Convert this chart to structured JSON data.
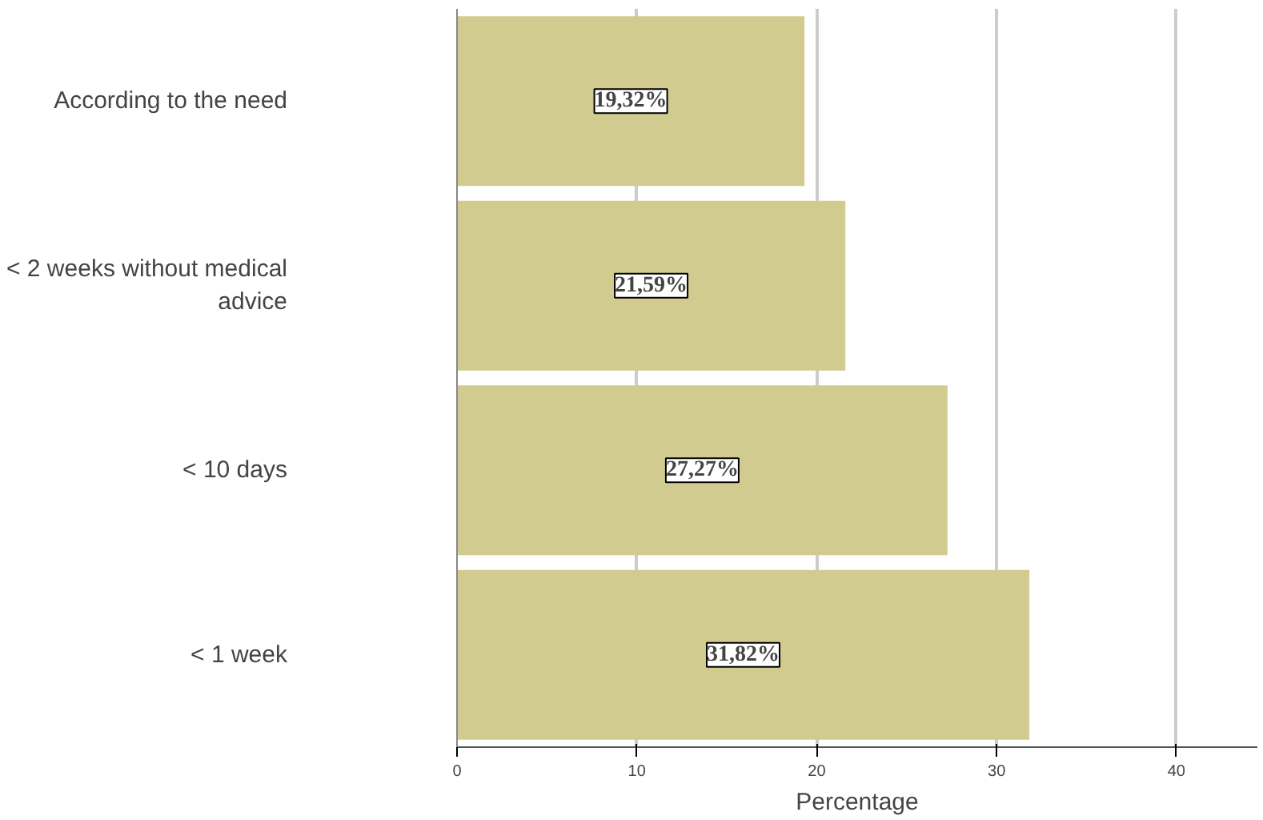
{
  "chart_data": {
    "type": "bar",
    "orientation": "horizontal",
    "xlabel": "Percentage",
    "categories": [
      "According to the need",
      "< 2 weeks without medical advice",
      "< 10 days",
      "< 1 week"
    ],
    "values": [
      19.32,
      21.59,
      27.27,
      31.82
    ],
    "value_labels": [
      "19,32%",
      "21,59%",
      "27,27%",
      "31,82%"
    ],
    "color": "#d1cb8f",
    "xlim": [
      0,
      44.5
    ],
    "xticks": [
      0,
      10,
      20,
      30,
      40
    ],
    "grid": "x"
  }
}
